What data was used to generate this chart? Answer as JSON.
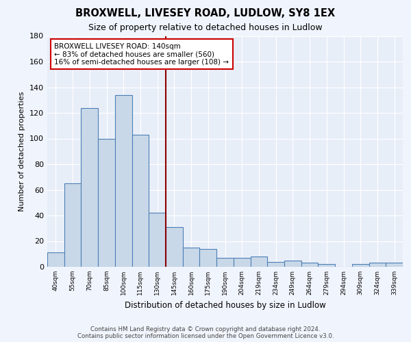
{
  "title": "BROXWELL, LIVESEY ROAD, LUDLOW, SY8 1EX",
  "subtitle": "Size of property relative to detached houses in Ludlow",
  "xlabel": "Distribution of detached houses by size in Ludlow",
  "ylabel": "Number of detached properties",
  "categories": [
    "40sqm",
    "55sqm",
    "70sqm",
    "85sqm",
    "100sqm",
    "115sqm",
    "130sqm",
    "145sqm",
    "160sqm",
    "175sqm",
    "190sqm",
    "204sqm",
    "219sqm",
    "234sqm",
    "249sqm",
    "264sqm",
    "279sqm",
    "294sqm",
    "309sqm",
    "324sqm",
    "339sqm"
  ],
  "values": [
    11,
    65,
    124,
    100,
    134,
    103,
    42,
    31,
    15,
    14,
    7,
    7,
    8,
    4,
    5,
    3,
    2,
    0,
    2,
    3,
    3
  ],
  "bar_color": "#c8d8e8",
  "bar_edge_color": "#4d7fb5",
  "vline_x_index": 7,
  "vline_color": "#8b0000",
  "annotation_text": "BROXWELL LIVESEY ROAD: 140sqm\n← 83% of detached houses are smaller (560)\n16% of semi-detached houses are larger (108) →",
  "annotation_box_color": "#ffffff",
  "annotation_box_edge": "#cc0000",
  "ylim": [
    0,
    180
  ],
  "yticks": [
    0,
    20,
    40,
    60,
    80,
    100,
    120,
    140,
    160,
    180
  ],
  "background_color": "#e8eef8",
  "grid_color": "#ffffff",
  "fig_background_color": "#f0f4fc",
  "footer": "Contains HM Land Registry data © Crown copyright and database right 2024.\nContains public sector information licensed under the Open Government Licence v3.0."
}
